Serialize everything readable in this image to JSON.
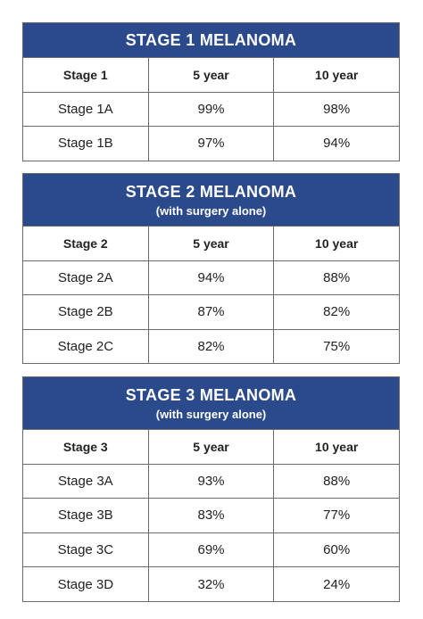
{
  "tables": [
    {
      "title": "STAGE 1 MELANOMA",
      "header": [
        "Stage 1",
        "5 year",
        "10 year"
      ],
      "rows": [
        [
          "Stage 1A",
          "99%",
          "98%"
        ],
        [
          "Stage 1B",
          "97%",
          "94%"
        ]
      ]
    },
    {
      "title": "STAGE 2 MELANOMA",
      "subtitle": "(with surgery alone)",
      "header": [
        "Stage 2",
        "5 year",
        "10 year"
      ],
      "rows": [
        [
          "Stage 2A",
          "94%",
          "88%"
        ],
        [
          "Stage 2B",
          "87%",
          "82%"
        ],
        [
          "Stage 2C",
          "82%",
          "75%"
        ]
      ]
    },
    {
      "title": "STAGE 3 MELANOMA",
      "subtitle": "(with surgery alone)",
      "header": [
        "Stage 3",
        "5 year",
        "10 year"
      ],
      "rows": [
        [
          "Stage 3A",
          "93%",
          "88%"
        ],
        [
          "Stage 3B",
          "83%",
          "77%"
        ],
        [
          "Stage 3C",
          "69%",
          "60%"
        ],
        [
          "Stage 3D",
          "32%",
          "24%"
        ]
      ]
    }
  ]
}
